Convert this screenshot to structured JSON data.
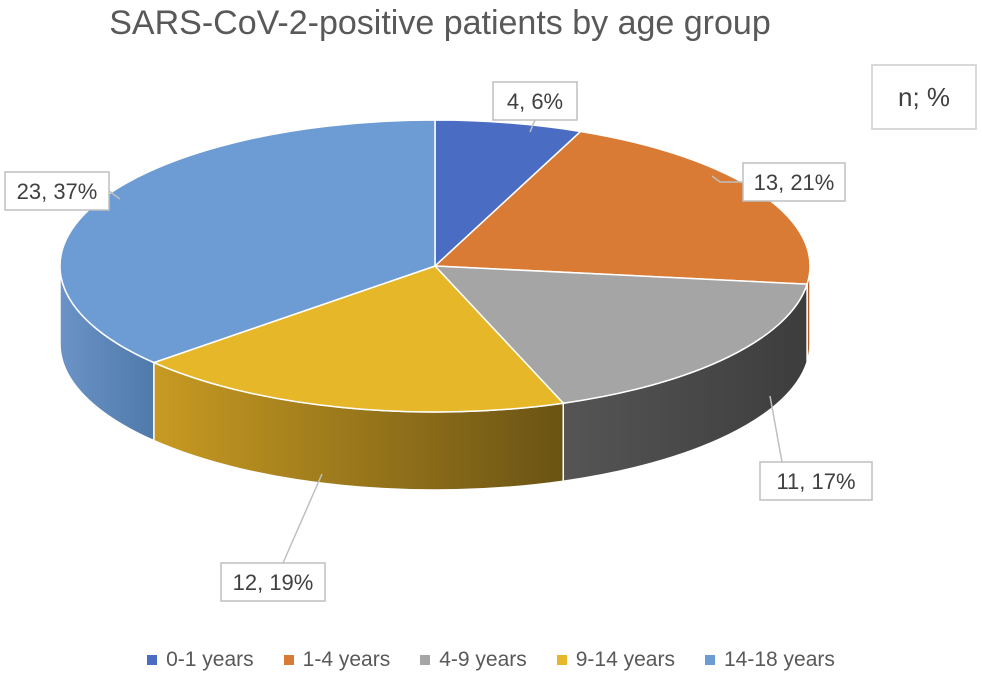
{
  "chart_data": {
    "type": "pie",
    "style": "3d",
    "title": "SARS-CoV-2-positive patients by age group",
    "units_label": "n; %",
    "categories": [
      "0-1 years",
      "1-4 years",
      "4-9 years",
      "9-14 years",
      "14-18 years"
    ],
    "values": [
      4,
      13,
      11,
      12,
      23
    ],
    "percents": [
      6,
      21,
      17,
      19,
      37
    ],
    "data_labels": [
      "4, 6%",
      "13, 21%",
      "11, 17%",
      "12, 19%",
      "23, 37%"
    ],
    "colors": [
      "#4472c4",
      "#ed7d31",
      "#a5a5a5",
      "#ffc000",
      "#5b9bd5"
    ],
    "legend_position": "bottom"
  }
}
